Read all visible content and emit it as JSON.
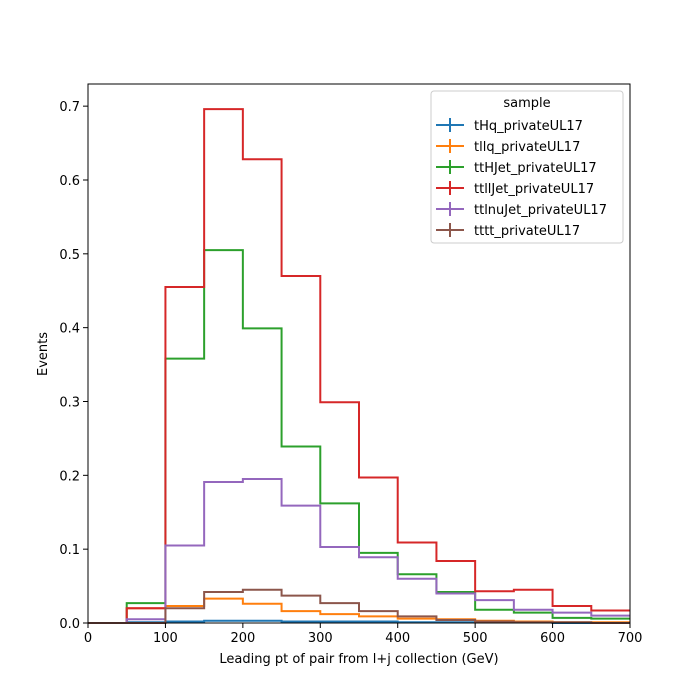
{
  "chart_data": {
    "type": "line",
    "style": "step-histogram",
    "xlabel": "Leading pt of pair from l+j collection (GeV)",
    "ylabel": "Events",
    "xlim": [
      0,
      700
    ],
    "ylim": [
      0,
      0.73
    ],
    "xticks": [
      0,
      100,
      200,
      300,
      400,
      500,
      600,
      700
    ],
    "yticks": [
      0.0,
      0.1,
      0.2,
      0.3,
      0.4,
      0.5,
      0.6,
      0.7
    ],
    "bin_edges": [
      0,
      50,
      100,
      150,
      200,
      250,
      300,
      350,
      400,
      450,
      500,
      550,
      600,
      650,
      700
    ],
    "grid": false,
    "legend": {
      "title": "sample",
      "placement": "top-right"
    },
    "series": [
      {
        "name": "tHq_privateUL17",
        "color": "#1f77b4",
        "values": [
          0.0,
          0.001,
          0.002,
          0.003,
          0.003,
          0.002,
          0.002,
          0.002,
          0.001,
          0.001,
          0.001,
          0.001,
          0.0,
          0.0
        ]
      },
      {
        "name": "tllq_privateUL17",
        "color": "#ff7f0e",
        "values": [
          0.0,
          0.02,
          0.023,
          0.033,
          0.026,
          0.016,
          0.012,
          0.009,
          0.006,
          0.005,
          0.003,
          0.002,
          0.001,
          0.001
        ]
      },
      {
        "name": "ttHJet_privateUL17",
        "color": "#2ca02c",
        "values": [
          0.0,
          0.027,
          0.358,
          0.505,
          0.399,
          0.239,
          0.162,
          0.095,
          0.066,
          0.042,
          0.018,
          0.014,
          0.007,
          0.006
        ]
      },
      {
        "name": "ttllJet_privateUL17",
        "color": "#d62728",
        "values": [
          0.0,
          0.02,
          0.455,
          0.696,
          0.628,
          0.47,
          0.299,
          0.197,
          0.109,
          0.084,
          0.043,
          0.045,
          0.023,
          0.017
        ]
      },
      {
        "name": "ttlnuJet_privateUL17",
        "color": "#9467bd",
        "values": [
          0.0,
          0.005,
          0.105,
          0.191,
          0.195,
          0.159,
          0.103,
          0.089,
          0.06,
          0.04,
          0.031,
          0.018,
          0.014,
          0.01
        ]
      },
      {
        "name": "tttt_privateUL17",
        "color": "#8c564b",
        "values": [
          0.0,
          0.0,
          0.02,
          0.042,
          0.045,
          0.037,
          0.027,
          0.016,
          0.009,
          0.004,
          0.002,
          0.001,
          0.001,
          0.0
        ]
      }
    ]
  }
}
